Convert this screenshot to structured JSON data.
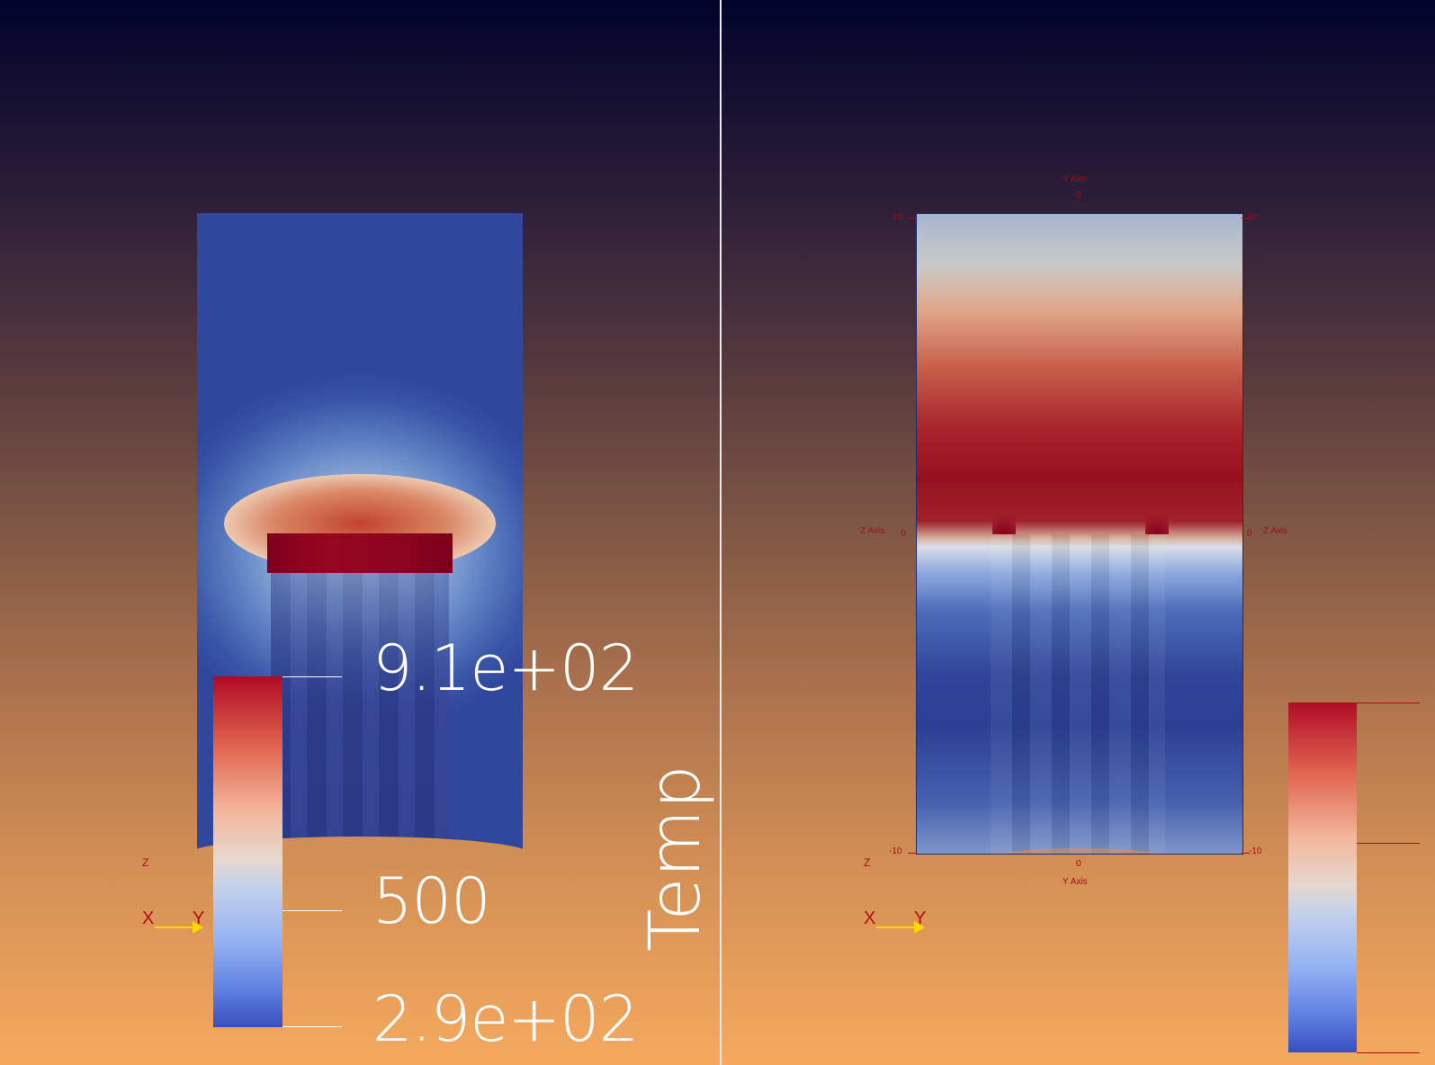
{
  "left_view": {
    "colorbar": {
      "title": "Temp",
      "max_label": "9.1e+02",
      "mid_label": "500",
      "min_label": "2.9e+02"
    },
    "orientation": {
      "x_label": "X",
      "y_label": "Y",
      "z_label": "Z"
    }
  },
  "right_view": {
    "axes": {
      "top_title": "Y Axis",
      "top_tick": "0",
      "left_top": "10",
      "right_top": "10",
      "left_zero": "0",
      "right_zero": "0",
      "left_zaxis": "Z Axis",
      "right_zaxis": "Z Axis",
      "left_bottom": "-10",
      "right_bottom": "-10",
      "bottom_tick": "0",
      "bottom_title": "Y Axis"
    },
    "orientation": {
      "x_label": "X",
      "y_label": "Y",
      "z_label": "Z"
    }
  },
  "colors": {
    "divider": "#e9e9e9",
    "axis_red": "#9b0f12",
    "hot": "#96101f",
    "cold": "#31479c",
    "orient_yellow": "#ffd800"
  }
}
